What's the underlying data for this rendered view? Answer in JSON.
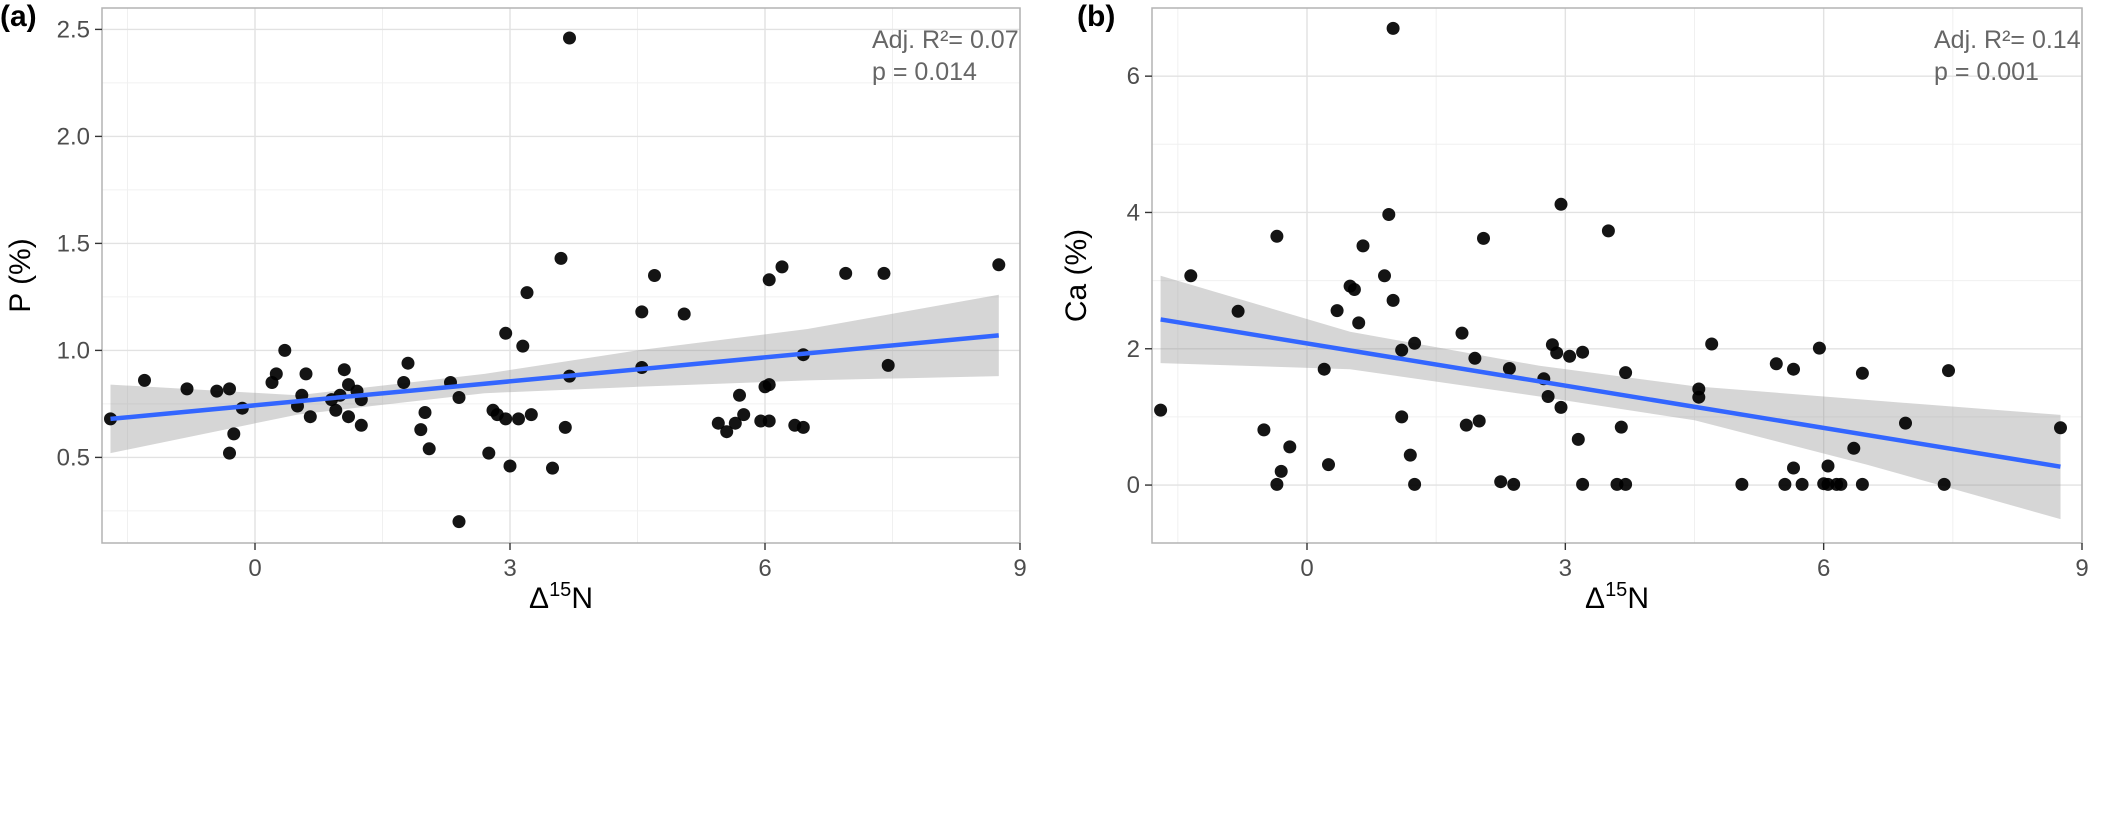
{
  "chart_data": [
    {
      "type": "scatter",
      "panel_label": "(a)",
      "xlabel": "Δ",
      "xlabel_sup": "15",
      "xlabel_tail": "N",
      "ylabel": "P (%)",
      "xlim": [
        -1.8,
        9.0
      ],
      "ylim": [
        0.1,
        2.6
      ],
      "xticks": [
        0,
        3,
        6,
        9
      ],
      "yticks": [
        0.5,
        1.0,
        1.5,
        2.0,
        2.5
      ],
      "ytick_labels": [
        "0.5",
        "1.0",
        "1.5",
        "2.0",
        "2.5"
      ],
      "grid": true,
      "stats": [
        "Adj. R²= 0.07",
        "p  = 0.014"
      ],
      "fit_line": {
        "x": [
          -1.7,
          8.75
        ],
        "y": [
          0.68,
          1.07
        ]
      },
      "confidence_band": {
        "x": [
          -1.7,
          0.5,
          2.7,
          4.5,
          6.5,
          8.75
        ],
        "lower": [
          0.52,
          0.7,
          0.8,
          0.83,
          0.86,
          0.88
        ],
        "upper": [
          0.84,
          0.79,
          0.89,
          1.0,
          1.1,
          1.26
        ]
      },
      "points": [
        [
          -1.7,
          0.68
        ],
        [
          -1.3,
          0.86
        ],
        [
          -0.8,
          0.82
        ],
        [
          -0.45,
          0.81
        ],
        [
          -0.3,
          0.82
        ],
        [
          -0.3,
          0.52
        ],
        [
          -0.25,
          0.61
        ],
        [
          -0.15,
          0.73
        ],
        [
          0.2,
          0.85
        ],
        [
          0.25,
          0.89
        ],
        [
          0.35,
          1.0
        ],
        [
          0.5,
          0.74
        ],
        [
          0.55,
          0.79
        ],
        [
          0.6,
          0.89
        ],
        [
          0.65,
          0.69
        ],
        [
          0.9,
          0.77
        ],
        [
          0.95,
          0.72
        ],
        [
          1.0,
          0.79
        ],
        [
          1.05,
          0.91
        ],
        [
          1.1,
          0.84
        ],
        [
          1.1,
          0.69
        ],
        [
          1.2,
          0.81
        ],
        [
          1.25,
          0.77
        ],
        [
          1.25,
          0.65
        ],
        [
          1.75,
          0.85
        ],
        [
          1.8,
          0.94
        ],
        [
          1.95,
          0.63
        ],
        [
          2.0,
          0.71
        ],
        [
          2.05,
          0.54
        ],
        [
          2.3,
          0.85
        ],
        [
          2.4,
          0.78
        ],
        [
          2.4,
          0.2
        ],
        [
          2.75,
          0.52
        ],
        [
          2.8,
          0.72
        ],
        [
          2.85,
          0.7
        ],
        [
          2.95,
          0.68
        ],
        [
          2.95,
          1.08
        ],
        [
          3.0,
          0.46
        ],
        [
          3.1,
          0.68
        ],
        [
          3.15,
          1.02
        ],
        [
          3.2,
          1.27
        ],
        [
          3.25,
          0.7
        ],
        [
          3.5,
          0.45
        ],
        [
          3.6,
          1.43
        ],
        [
          3.65,
          0.64
        ],
        [
          3.7,
          0.88
        ],
        [
          3.7,
          2.46
        ],
        [
          4.55,
          0.92
        ],
        [
          4.55,
          1.18
        ],
        [
          4.7,
          1.35
        ],
        [
          5.05,
          1.17
        ],
        [
          5.45,
          0.66
        ],
        [
          5.55,
          0.62
        ],
        [
          5.65,
          0.66
        ],
        [
          5.7,
          0.79
        ],
        [
          5.75,
          0.7
        ],
        [
          5.95,
          0.67
        ],
        [
          6.0,
          0.83
        ],
        [
          6.05,
          0.67
        ],
        [
          6.05,
          0.84
        ],
        [
          6.05,
          1.33
        ],
        [
          6.2,
          1.39
        ],
        [
          6.35,
          0.65
        ],
        [
          6.45,
          0.98
        ],
        [
          6.45,
          0.64
        ],
        [
          6.95,
          1.36
        ],
        [
          7.4,
          1.36
        ],
        [
          7.45,
          0.93
        ],
        [
          8.75,
          1.4
        ]
      ]
    },
    {
      "type": "scatter",
      "panel_label": "(b)",
      "xlabel": "Δ",
      "xlabel_sup": "15",
      "xlabel_tail": "N",
      "ylabel": "Ca (%)",
      "xlim": [
        -1.8,
        9.0
      ],
      "ylim": [
        -0.85,
        7.0
      ],
      "xticks": [
        0,
        3,
        6,
        9
      ],
      "yticks": [
        0,
        2,
        4,
        6
      ],
      "ytick_labels": [
        "0",
        "2",
        "4",
        "6"
      ],
      "grid": true,
      "stats": [
        "Adj. R²= 0.14",
        "p = 0.001"
      ],
      "fit_line": {
        "x": [
          -1.7,
          8.75
        ],
        "y": [
          2.43,
          0.27
        ]
      },
      "confidence_band": {
        "x": [
          -1.7,
          0.5,
          2.7,
          4.5,
          6.5,
          8.75
        ],
        "lower": [
          1.79,
          1.7,
          1.3,
          0.95,
          0.3,
          -0.5
        ],
        "upper": [
          3.07,
          2.25,
          1.75,
          1.45,
          1.25,
          1.03
        ]
      },
      "points": [
        [
          -1.7,
          1.1
        ],
        [
          -1.35,
          3.07
        ],
        [
          -0.8,
          2.55
        ],
        [
          -0.5,
          0.81
        ],
        [
          -0.35,
          3.65
        ],
        [
          -0.35,
          0.01
        ],
        [
          -0.3,
          0.2
        ],
        [
          -0.2,
          0.56
        ],
        [
          0.2,
          1.7
        ],
        [
          0.25,
          0.3
        ],
        [
          0.35,
          2.56
        ],
        [
          0.5,
          2.92
        ],
        [
          0.55,
          2.87
        ],
        [
          0.6,
          2.38
        ],
        [
          0.65,
          3.51
        ],
        [
          0.9,
          3.07
        ],
        [
          0.95,
          3.97
        ],
        [
          1.0,
          2.71
        ],
        [
          1.0,
          6.7
        ],
        [
          1.1,
          1.98
        ],
        [
          1.1,
          1.0
        ],
        [
          1.2,
          0.44
        ],
        [
          1.25,
          2.08
        ],
        [
          1.25,
          0.01
        ],
        [
          1.8,
          2.23
        ],
        [
          1.85,
          0.88
        ],
        [
          1.95,
          1.86
        ],
        [
          2.0,
          0.94
        ],
        [
          2.05,
          3.62
        ],
        [
          2.25,
          0.05
        ],
        [
          2.35,
          1.71
        ],
        [
          2.4,
          0.01
        ],
        [
          2.75,
          1.56
        ],
        [
          2.8,
          1.3
        ],
        [
          2.85,
          2.06
        ],
        [
          2.9,
          1.94
        ],
        [
          2.95,
          1.14
        ],
        [
          2.95,
          4.12
        ],
        [
          3.05,
          1.89
        ],
        [
          3.15,
          0.67
        ],
        [
          3.2,
          1.95
        ],
        [
          3.2,
          0.01
        ],
        [
          3.5,
          3.73
        ],
        [
          3.6,
          0.01
        ],
        [
          3.65,
          0.85
        ],
        [
          3.7,
          1.65
        ],
        [
          3.7,
          0.01
        ],
        [
          4.55,
          1.41
        ],
        [
          4.55,
          1.29
        ],
        [
          4.7,
          2.07
        ],
        [
          5.05,
          0.01
        ],
        [
          5.45,
          1.78
        ],
        [
          5.55,
          0.01
        ],
        [
          5.65,
          1.7
        ],
        [
          5.65,
          0.25
        ],
        [
          5.75,
          0.01
        ],
        [
          5.95,
          2.01
        ],
        [
          6.0,
          0.02
        ],
        [
          6.05,
          0.01
        ],
        [
          6.05,
          0.28
        ],
        [
          6.15,
          0.01
        ],
        [
          6.2,
          0.01
        ],
        [
          6.35,
          0.54
        ],
        [
          6.45,
          1.64
        ],
        [
          6.45,
          0.01
        ],
        [
          6.95,
          0.91
        ],
        [
          7.4,
          0.01
        ],
        [
          7.45,
          1.68
        ],
        [
          8.75,
          0.84
        ]
      ]
    }
  ]
}
